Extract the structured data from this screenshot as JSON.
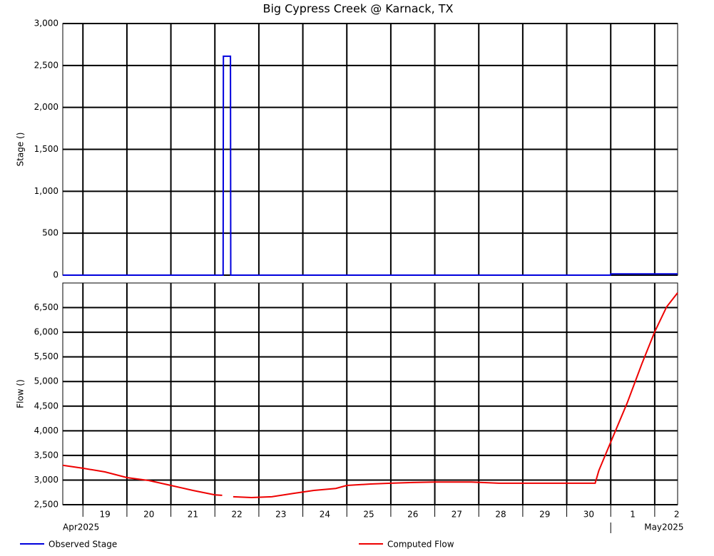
{
  "chart_data": [
    {
      "type": "line",
      "title": "Big Cypress Creek @ Karnack, TX",
      "ylabel": "Stage ()",
      "xlim": [
        "2025-04-18T13:00",
        "2025-05-02T12:30"
      ],
      "ylim": [
        0,
        3000
      ],
      "yticks": [
        0,
        500,
        {
          "value": 1000,
          "label": "1,000"
        },
        {
          "value": 1500,
          "label": "1,500"
        },
        {
          "value": 2000,
          "label": "2,000"
        },
        {
          "value": 2500,
          "label": "2,500"
        },
        {
          "value": 3000,
          "label": "3,000"
        }
      ],
      "grid": true,
      "series": [
        {
          "name": "Observed Stage",
          "color": "#0000dd",
          "x": [
            "2025-04-18T13:00",
            "2025-04-22T04:30",
            "2025-04-22T04:40",
            "2025-04-22T08:30",
            "2025-04-22T08:40",
            "2025-04-30T23:50",
            "2025-05-01T00:00",
            "2025-05-02T12:30"
          ],
          "values": [
            0,
            0,
            2610,
            2610,
            0,
            0,
            15,
            15
          ]
        }
      ]
    },
    {
      "type": "line",
      "ylabel": "Flow ()",
      "xlim": [
        "2025-04-18T13:00",
        "2025-05-02T12:30"
      ],
      "ylim": [
        2500,
        7000
      ],
      "yticks": [
        {
          "value": 2500,
          "label": "2,500"
        },
        {
          "value": 3000,
          "label": "3,000"
        },
        {
          "value": 3500,
          "label": "3,500"
        },
        {
          "value": 4000,
          "label": "4,000"
        },
        {
          "value": 4500,
          "label": "4,500"
        },
        {
          "value": 5000,
          "label": "5,000"
        },
        {
          "value": 5500,
          "label": "5,500"
        },
        {
          "value": 6000,
          "label": "6,000"
        },
        {
          "value": 6500,
          "label": "6,500"
        }
      ],
      "xticks": [
        {
          "value": "2025-04-19T00:00",
          "label": "19"
        },
        {
          "value": "2025-04-20T00:00",
          "label": "20"
        },
        {
          "value": "2025-04-21T00:00",
          "label": "21"
        },
        {
          "value": "2025-04-22T00:00",
          "label": "22"
        },
        {
          "value": "2025-04-23T00:00",
          "label": "23"
        },
        {
          "value": "2025-04-24T00:00",
          "label": "24"
        },
        {
          "value": "2025-04-25T00:00",
          "label": "25"
        },
        {
          "value": "2025-04-26T00:00",
          "label": "26"
        },
        {
          "value": "2025-04-27T00:00",
          "label": "27"
        },
        {
          "value": "2025-04-28T00:00",
          "label": "28"
        },
        {
          "value": "2025-04-29T00:00",
          "label": "29"
        },
        {
          "value": "2025-04-30T00:00",
          "label": "30"
        },
        {
          "value": "2025-05-01T00:00",
          "label": "1"
        },
        {
          "value": "2025-05-02T00:00",
          "label": "2"
        }
      ],
      "month_ticks": [
        {
          "value": "2025-04-01T00:00",
          "label": "Apr2025"
        },
        {
          "value": "2025-05-01T00:00",
          "label": "May2025"
        }
      ],
      "grid": true,
      "series": [
        {
          "name": "Computed Flow",
          "color": "#ee0000",
          "x": [
            "2025-04-18T13:00",
            "2025-04-19T00:00",
            "2025-04-19T12:00",
            "2025-04-20T00:00",
            "2025-04-20T12:00",
            "2025-04-21T00:00",
            "2025-04-21T12:00",
            "2025-04-22T00:00",
            "2025-04-22T04:00",
            "2025-04-22T07:00",
            "2025-04-22T10:00",
            "2025-04-22T20:00",
            "2025-04-23T07:00",
            "2025-04-23T19:00",
            "2025-04-24T06:00",
            "2025-04-24T18:00",
            "2025-04-25T00:00",
            "2025-04-25T13:00",
            "2025-04-26T00:00",
            "2025-04-26T12:00",
            "2025-04-27T00:00",
            "2025-04-27T20:00",
            "2025-04-28T11:00",
            "2025-04-29T00:00",
            "2025-04-30T00:00",
            "2025-04-30T15:30",
            "2025-04-30T17:30",
            "2025-05-01T00:00",
            "2025-05-01T09:00",
            "2025-05-01T17:00",
            "2025-05-02T00:00",
            "2025-05-02T06:30",
            "2025-05-02T12:30"
          ],
          "values": [
            3300,
            3240,
            3165,
            3050,
            2990,
            2890,
            2790,
            2700,
            2690,
            null,
            2660,
            2645,
            2660,
            2730,
            2790,
            2830,
            2890,
            2920,
            2935,
            2950,
            2960,
            2960,
            2935,
            2935,
            2935,
            2935,
            3190,
            3770,
            4565,
            5360,
            6010,
            6515,
            6800
          ]
        }
      ]
    }
  ]
}
